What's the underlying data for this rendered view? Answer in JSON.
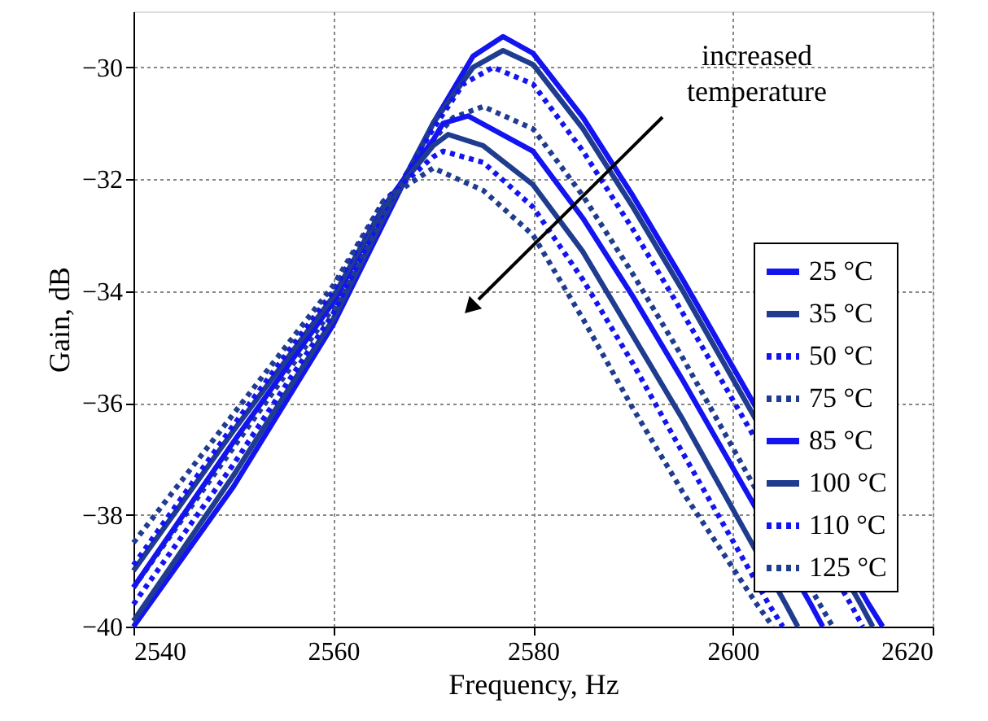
{
  "chart_data": {
    "type": "line",
    "xlabel": "Frequency, Hz",
    "ylabel": "Gain, dB",
    "xlim": [
      2540,
      2620
    ],
    "xticks": [
      {
        "value": 2540,
        "label": "2540"
      },
      {
        "value": 2560,
        "label": "2560"
      },
      {
        "value": 2580,
        "label": "2580"
      },
      {
        "value": 2600,
        "label": "2600"
      },
      {
        "value": 2620,
        "label": "2620"
      }
    ],
    "ylim": [
      -40,
      -29
    ],
    "yticks": [
      -40,
      -38,
      -36,
      -34,
      -32,
      -30
    ],
    "grid": true,
    "legend": "bottom right",
    "marker": "none",
    "annotations": [
      "increased temperature"
    ],
    "series": [
      {
        "name": "25  °C",
        "color": "#1414f0",
        "line_style": "solid",
        "x": [
          2540,
          2550,
          2560,
          2565,
          2570,
          2574,
          2577,
          2580,
          2585,
          2590,
          2595,
          2613.6,
          2615
        ],
        "values": [
          -40.0,
          -37.5,
          -34.6,
          -32.8,
          -31.0,
          -29.8,
          -29.45,
          -29.75,
          -30.9,
          -32.3,
          -33.8,
          -39.6,
          -40.0
        ]
      },
      {
        "name": "35  °C",
        "color": "#1f3c8f",
        "line_style": "solid",
        "x": [
          2540,
          2550,
          2560,
          2565,
          2570,
          2574,
          2577,
          2580,
          2585,
          2590,
          2595,
          2612.8,
          2614
        ],
        "values": [
          -39.9,
          -37.3,
          -34.5,
          -32.7,
          -31.0,
          -30.0,
          -29.7,
          -29.95,
          -31.1,
          -32.5,
          -34.0,
          -39.6,
          -40.0
        ]
      },
      {
        "name": "50  °C",
        "color": "#1414f0",
        "line_style": "dotted",
        "x": [
          2540,
          2550,
          2560,
          2565,
          2570,
          2573,
          2576,
          2580,
          2585,
          2590,
          2595,
          2611.8,
          2613
        ],
        "values": [
          -39.6,
          -37.1,
          -34.4,
          -32.6,
          -31.1,
          -30.3,
          -30.0,
          -30.3,
          -31.5,
          -32.9,
          -34.4,
          -39.6,
          -40.0
        ]
      },
      {
        "name": "75  °C",
        "color": "#1f3c8f",
        "line_style": "dotted",
        "x": [
          2540,
          2550,
          2560,
          2565,
          2570,
          2572,
          2575,
          2580,
          2585,
          2590,
          2595,
          2608.7,
          2610
        ],
        "values": [
          -39.3,
          -36.8,
          -34.3,
          -32.6,
          -31.3,
          -30.9,
          -30.7,
          -31.1,
          -32.3,
          -33.7,
          -35.2,
          -39.6,
          -40.0
        ]
      },
      {
        "name": "85  °C",
        "color": "#1414f0",
        "line_style": "solid",
        "x": [
          2540,
          2550,
          2560,
          2565,
          2570,
          2571,
          2573.5,
          2580,
          2585,
          2590,
          2595,
          2607.8,
          2609
        ],
        "values": [
          -39.3,
          -36.7,
          -34.2,
          -32.5,
          -31.3,
          -31.0,
          -30.87,
          -31.5,
          -32.7,
          -34.1,
          -35.6,
          -39.6,
          -40.0
        ]
      },
      {
        "name": "100 °C",
        "color": "#1f3c8f",
        "line_style": "solid",
        "x": [
          2540,
          2550,
          2560,
          2565,
          2570,
          2571.5,
          2575,
          2580,
          2585,
          2590,
          2595,
          2605.3,
          2606.5
        ],
        "values": [
          -39.0,
          -36.5,
          -34.1,
          -32.5,
          -31.4,
          -31.2,
          -31.4,
          -32.1,
          -33.3,
          -34.8,
          -36.3,
          -39.6,
          -40.0
        ]
      },
      {
        "name": "110 °C",
        "color": "#1414f0",
        "line_style": "dotted",
        "x": [
          2540,
          2550,
          2560,
          2565,
          2570,
          2571,
          2575,
          2580,
          2585,
          2590,
          2595,
          2603.6,
          2605
        ],
        "values": [
          -38.9,
          -36.4,
          -34.0,
          -32.4,
          -31.6,
          -31.5,
          -31.7,
          -32.5,
          -33.8,
          -35.3,
          -36.9,
          -39.6,
          -40.0
        ]
      },
      {
        "name": "125 °C",
        "color": "#1f3c8f",
        "line_style": "dotted",
        "x": [
          2540,
          2550,
          2560,
          2565,
          2570,
          2575,
          2580,
          2585,
          2590,
          2595,
          2602.4,
          2604
        ],
        "values": [
          -38.5,
          -36.2,
          -33.9,
          -32.4,
          -31.8,
          -32.2,
          -33.0,
          -34.5,
          -36.1,
          -37.6,
          -39.6,
          -40.0
        ]
      }
    ]
  }
}
